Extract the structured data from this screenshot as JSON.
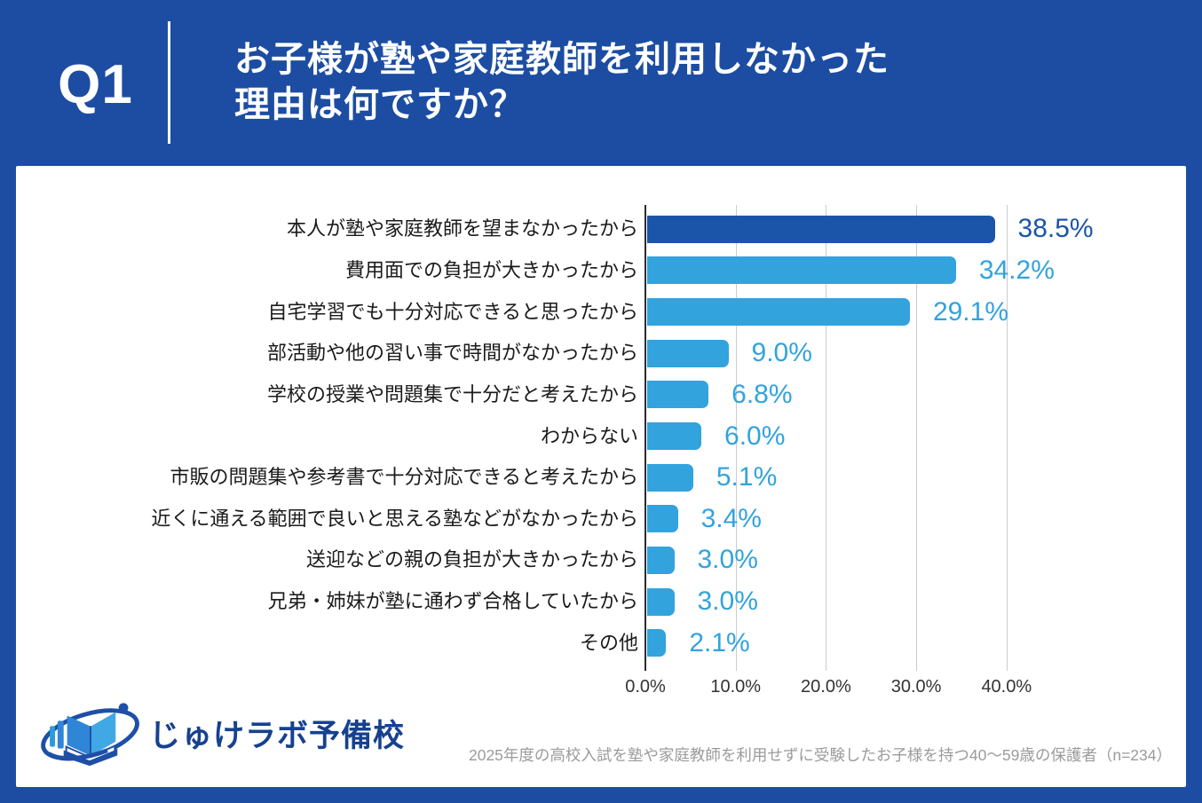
{
  "header": {
    "q_label": "Q1",
    "title_line1": "お子様が塾や家庭教師を利用しなかった",
    "title_line2": "理由は何ですか？"
  },
  "chart_data": {
    "type": "bar",
    "orientation": "horizontal",
    "title": "",
    "xlabel": "",
    "ylabel": "",
    "categories": [
      "本人が塾や家庭教師を望まなかったから",
      "費用面での負担が大きかったから",
      "自宅学習でも十分対応できると思ったから",
      "部活動や他の習い事で時間がなかったから",
      "学校の授業や問題集で十分だと考えたから",
      "わからない",
      "市販の問題集や参考書で十分対応できると考えたから",
      "近くに通える範囲で良いと思える塾などがなかったから",
      "送迎などの親の負担が大きかったから",
      "兄弟・姉妹が塾に通わず合格していたから",
      "その他"
    ],
    "values": [
      38.5,
      34.2,
      29.1,
      9.0,
      6.8,
      6.0,
      5.1,
      3.4,
      3.0,
      3.0,
      2.1
    ],
    "value_labels": [
      "38.5%",
      "34.2%",
      "29.1%",
      "9.0%",
      "6.8%",
      "6.0%",
      "5.1%",
      "3.4%",
      "3.0%",
      "3.0%",
      "2.1%"
    ],
    "highlight_index": 0,
    "x_ticks": [
      "0.0%",
      "10.0%",
      "20.0%",
      "30.0%",
      "40.0%"
    ],
    "x_tick_values": [
      0,
      10,
      20,
      30,
      40
    ],
    "xlim": [
      0,
      40
    ],
    "grid": true,
    "legend": "none",
    "colors": {
      "bar_highlight": "#1b55a9",
      "bar_default": "#32a3dd",
      "gridline": "#cccccc",
      "axis": "#2b2b2b",
      "category_text": "#1a1a1a",
      "tick_text": "#333333"
    }
  },
  "footer": {
    "logo_text": "じゅけラボ予備校",
    "note": "2025年度の高校入試を塾や家庭教師を利用せずに受験したお子様を持つ40〜59歳の保護者（n=234）"
  },
  "colors": {
    "background": "#1c4da2",
    "card": "#ffffff",
    "header_text": "#ffffff",
    "logo_text": "#16418f",
    "note_text": "#9b9b9b"
  }
}
